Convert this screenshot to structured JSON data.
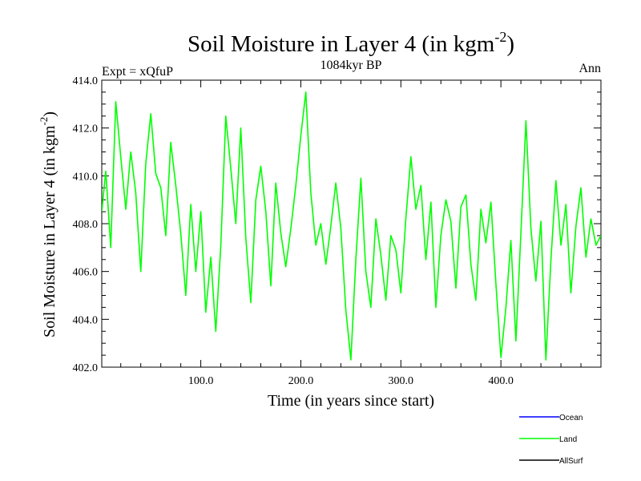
{
  "chart_data": {
    "type": "line",
    "title": "Soil Moisture in Layer 4 (in kgm",
    "title_sup": "-2",
    "title_close": ")",
    "subtitle": "1084kyr BP",
    "left_label": "Expt = xQfuP",
    "right_label": "Ann",
    "xlabel": "Time (in years since start)",
    "ylabel": "Soil Moisture in Layer 4 (in kgm",
    "ylabel_sup": "-2",
    "ylabel_close": ")",
    "xlim": [
      1,
      500
    ],
    "ylim": [
      402.0,
      414.0
    ],
    "x_ticks": [
      100,
      200,
      300,
      400
    ],
    "x_tick_labels": [
      "100.0",
      "200.0",
      "300.0",
      "400.0"
    ],
    "y_ticks": [
      402,
      404,
      406,
      408,
      410,
      412,
      414
    ],
    "y_tick_labels": [
      "402.0",
      "404.0",
      "406.0",
      "408.0",
      "410.0",
      "412.0",
      "414.0"
    ],
    "legend": [
      {
        "name": "Ocean",
        "color": "#0000ff"
      },
      {
        "name": "Land",
        "color": "#00ff00"
      },
      {
        "name": "AllSurf",
        "color": "#000000"
      }
    ],
    "series": [
      {
        "name": "Land",
        "color": "#00ff00",
        "x": [
          1,
          5,
          10,
          15,
          20,
          25,
          30,
          35,
          40,
          45,
          50,
          55,
          60,
          65,
          70,
          75,
          80,
          85,
          90,
          95,
          100,
          105,
          110,
          115,
          120,
          125,
          130,
          135,
          140,
          145,
          150,
          155,
          160,
          165,
          170,
          175,
          180,
          185,
          190,
          195,
          200,
          205,
          210,
          215,
          220,
          225,
          230,
          235,
          240,
          245,
          250,
          255,
          260,
          265,
          270,
          275,
          280,
          285,
          290,
          295,
          300,
          305,
          310,
          315,
          320,
          325,
          330,
          335,
          340,
          345,
          350,
          355,
          360,
          365,
          370,
          375,
          380,
          385,
          390,
          395,
          400,
          405,
          410,
          415,
          420,
          425,
          430,
          435,
          440,
          445,
          450,
          455,
          460,
          465,
          470,
          475,
          480,
          485,
          490,
          495,
          500
        ],
        "values": [
          408.5,
          410.2,
          407.0,
          413.1,
          410.8,
          408.6,
          411.0,
          409.3,
          406.0,
          410.5,
          412.6,
          410.1,
          409.5,
          407.5,
          411.4,
          409.6,
          407.6,
          405.0,
          408.8,
          406.0,
          408.5,
          404.3,
          406.6,
          403.5,
          407.1,
          412.5,
          410.3,
          408.0,
          412.0,
          407.4,
          404.7,
          409.0,
          410.4,
          408.5,
          405.4,
          409.7,
          407.6,
          406.2,
          407.8,
          409.6,
          411.7,
          413.5,
          409.3,
          407.1,
          408.0,
          406.3,
          407.9,
          409.7,
          407.8,
          404.4,
          402.3,
          406.5,
          409.9,
          406.0,
          404.5,
          408.2,
          406.7,
          404.8,
          407.5,
          406.9,
          405.1,
          408.2,
          410.8,
          408.6,
          409.6,
          406.5,
          408.9,
          404.5,
          407.5,
          409.0,
          408.1,
          405.3,
          408.7,
          409.2,
          406.3,
          404.8,
          408.6,
          407.2,
          408.9,
          405.5,
          402.4,
          404.5,
          407.3,
          403.1,
          407.6,
          412.3,
          407.8,
          405.6,
          408.1,
          402.3,
          406.5,
          409.8,
          407.1,
          408.8,
          405.1,
          407.9,
          409.5,
          406.6,
          408.2,
          407.1,
          407.5
        ]
      }
    ]
  }
}
